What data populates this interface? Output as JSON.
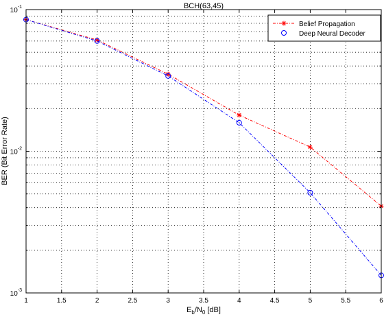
{
  "chart_data": {
    "type": "line",
    "title": "BCH(63,45)",
    "xlabel": {
      "main": "E",
      "sub1": "b",
      "mid": "/N",
      "sub2": "0",
      "tail": " [dB]"
    },
    "ylabel": "BER (Bit Error Rate)",
    "xlim": [
      1,
      6
    ],
    "ylim_log10": [
      -3,
      -1
    ],
    "yscale": "log",
    "grid": true,
    "legend_position": "top-right",
    "x_ticks": [
      "1",
      "1.5",
      "2",
      "2.5",
      "3",
      "3.5",
      "4",
      "4.5",
      "5",
      "5.5",
      "6"
    ],
    "y_ticks": [
      {
        "base": "10",
        "exp": "-1",
        "value": 0.1
      },
      {
        "base": "10",
        "exp": "-2",
        "value": 0.01
      },
      {
        "base": "10",
        "exp": "-3",
        "value": 0.001
      }
    ],
    "series": [
      {
        "name": "Belief Propagation",
        "color": "#ff0000",
        "marker": "star",
        "dash": "dashdot",
        "x": [
          1,
          2,
          3,
          4,
          5,
          6
        ],
        "y": [
          0.085,
          0.061,
          0.035,
          0.018,
          0.0107,
          0.0041
        ]
      },
      {
        "name": "Deep Neural Decoder",
        "color": "#0000ff",
        "marker": "circle",
        "dash": "dashdot",
        "x": [
          1,
          2,
          3,
          4,
          5,
          6
        ],
        "y": [
          0.085,
          0.06,
          0.034,
          0.0159,
          0.0051,
          0.00133
        ]
      }
    ]
  }
}
